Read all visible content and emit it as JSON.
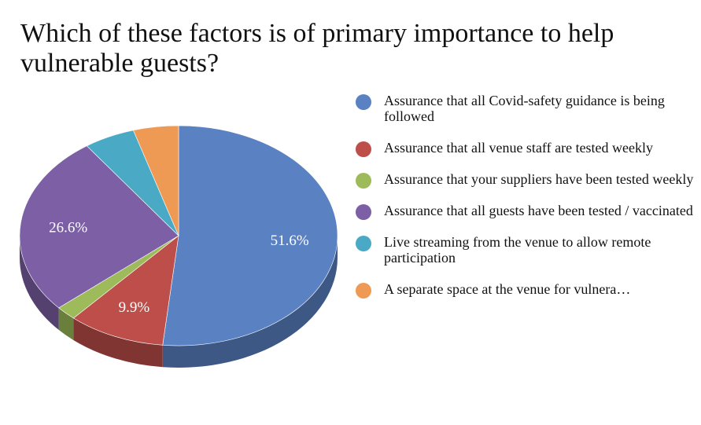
{
  "chart_data": {
    "type": "pie",
    "title": "Which of these factors is of primary importance to help vulnerable guests?",
    "categories": [
      "Assurance that all Covid-safety guidance is being followed",
      "Assurance that all venue staff are tested weekly",
      "Assurance that your suppliers have been tested weekly",
      "Assurance that all guests have been tested / vaccinated",
      "Live streaming from the venue to allow remote participation",
      "A separate space at the venue for vulnera…"
    ],
    "values": [
      51.6,
      9.9,
      2.1,
      26.6,
      5.2,
      4.6
    ],
    "value_labels": [
      "51.6%",
      "9.9%",
      "",
      "26.6%",
      "",
      ""
    ],
    "colors": [
      "#5a82c3",
      "#be4e4a",
      "#9dbb5a",
      "#7c5fa4",
      "#4aaac6",
      "#ef9a54"
    ],
    "legend_position": "right",
    "style": "3d"
  }
}
